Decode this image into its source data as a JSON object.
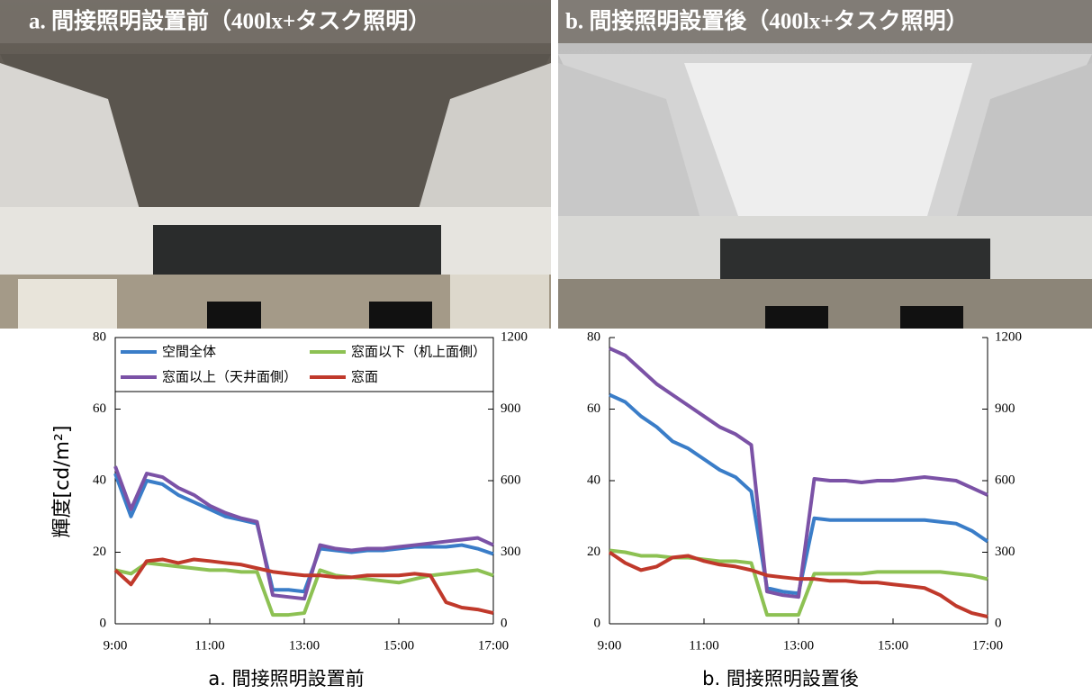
{
  "photos": [
    {
      "title": "a. 間接照明設置前（400lx+タスク照明）"
    },
    {
      "title": "b. 間接照明設置後（400lx+タスク照明）"
    }
  ],
  "chart_data": [
    {
      "type": "line",
      "title": "a. 間接照明設置前",
      "ylabel": "輝度[cd/m²]",
      "legend": "top",
      "x": [
        540,
        560,
        580,
        600,
        620,
        640,
        660,
        680,
        700,
        720,
        740,
        760,
        780,
        800,
        820,
        840,
        860,
        880,
        900,
        920,
        940,
        960,
        980,
        1000,
        1020
      ],
      "xlim": [
        540,
        1020
      ],
      "xticks": [
        {
          "value": 540,
          "label": "9:00"
        },
        {
          "value": 660,
          "label": "11:00"
        },
        {
          "value": 780,
          "label": "13:00"
        },
        {
          "value": 900,
          "label": "15:00"
        },
        {
          "value": 1020,
          "label": "17:00"
        }
      ],
      "ylim": [
        0,
        80
      ],
      "yticks": [
        0,
        20,
        40,
        60,
        80
      ],
      "y2lim": [
        0,
        1200
      ],
      "y2ticks": [
        0,
        300,
        600,
        900,
        1200
      ],
      "series": [
        {
          "name": "空間全体",
          "color": "#3a7dc8",
          "values": [
            42,
            30,
            40,
            39,
            36,
            34,
            32,
            30,
            29,
            28,
            9.5,
            9.5,
            9,
            21,
            20.5,
            20,
            20.5,
            20.5,
            21,
            21.5,
            21.5,
            21.5,
            22,
            21,
            19.5
          ]
        },
        {
          "name": "窓面以下（机上面側）",
          "color": "#8dc153",
          "values": [
            15,
            14,
            17,
            16.5,
            16,
            15.5,
            15,
            15,
            14.5,
            14.5,
            2.5,
            2.5,
            3,
            15,
            13.5,
            13,
            12.5,
            12,
            11.5,
            12.5,
            13.5,
            14,
            14.5,
            15,
            13.5
          ]
        },
        {
          "name": "窓面以上（天井面側）",
          "color": "#7b52a6",
          "values": [
            44,
            32,
            42,
            41,
            38,
            36,
            33,
            31,
            29.5,
            28.5,
            8,
            7.5,
            7,
            22,
            21,
            20.5,
            21,
            21,
            21.5,
            22,
            22.5,
            23,
            23.5,
            24,
            22
          ]
        },
        {
          "name": "窓面",
          "color": "#c0392b",
          "axis": "y2",
          "values": [
            225,
            165,
            263,
            270,
            255,
            270,
            263,
            255,
            248,
            233,
            218,
            210,
            203,
            203,
            195,
            195,
            203,
            203,
            203,
            210,
            203,
            90,
            68,
            60,
            45
          ]
        }
      ]
    },
    {
      "type": "line",
      "title": "b. 間接照明設置後",
      "x": [
        540,
        560,
        580,
        600,
        620,
        640,
        660,
        680,
        700,
        720,
        740,
        760,
        780,
        800,
        820,
        840,
        860,
        880,
        900,
        920,
        940,
        960,
        980,
        1000,
        1020
      ],
      "xlim": [
        540,
        1020
      ],
      "xticks": [
        {
          "value": 540,
          "label": "9:00"
        },
        {
          "value": 660,
          "label": "11:00"
        },
        {
          "value": 780,
          "label": "13:00"
        },
        {
          "value": 900,
          "label": "15:00"
        },
        {
          "value": 1020,
          "label": "17:00"
        }
      ],
      "ylim": [
        0,
        80
      ],
      "yticks": [
        0,
        20,
        40,
        60,
        80
      ],
      "y2lim": [
        0,
        1200
      ],
      "y2ticks": [
        0,
        300,
        600,
        900,
        1200
      ],
      "series": [
        {
          "color": "#3a7dc8",
          "values": [
            64,
            62,
            58,
            55,
            51,
            49,
            46,
            43,
            41,
            37,
            10,
            9,
            8.5,
            29.5,
            29,
            29,
            29,
            29,
            29,
            29,
            29,
            28.5,
            28,
            26,
            23
          ]
        },
        {
          "color": "#8dc153",
          "values": [
            20.5,
            20,
            19,
            19,
            18.5,
            18.5,
            18,
            17.5,
            17.5,
            17,
            2.5,
            2.5,
            2.5,
            14,
            14,
            14,
            14,
            14.5,
            14.5,
            14.5,
            14.5,
            14.5,
            14,
            13.5,
            12.5
          ]
        },
        {
          "color": "#7b52a6",
          "values": [
            77,
            75,
            71,
            67,
            64,
            61,
            58,
            55,
            53,
            50,
            9,
            8,
            7.5,
            40.5,
            40,
            40,
            39.5,
            40,
            40,
            40.5,
            41,
            40.5,
            40,
            38,
            36
          ]
        },
        {
          "color": "#c0392b",
          "axis": "y2",
          "values": [
            300,
            255,
            225,
            240,
            278,
            285,
            263,
            248,
            240,
            225,
            203,
            195,
            188,
            188,
            180,
            180,
            173,
            173,
            165,
            158,
            150,
            120,
            75,
            45,
            30
          ]
        }
      ]
    }
  ]
}
